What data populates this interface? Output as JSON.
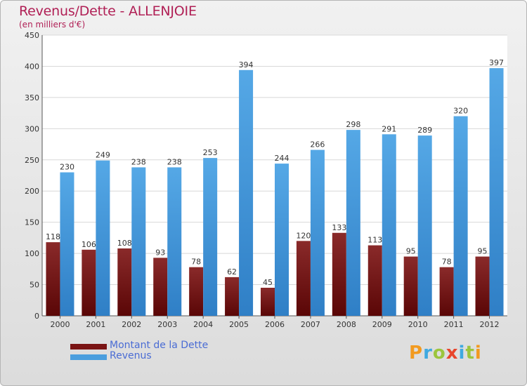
{
  "colors": {
    "dette": "#7a1414",
    "revenus": "#4a9ede",
    "title": "#b01f55",
    "legend_text": "#4a6cd4"
  },
  "chart_data": {
    "type": "bar",
    "title": "Revenus/Dette - ALLENJOIE",
    "subtitle": "(en milliers d'€)",
    "xlabel": "",
    "ylabel": "",
    "ylim": [
      0,
      450
    ],
    "yticks": [
      0,
      50,
      100,
      150,
      200,
      250,
      300,
      350,
      400,
      450
    ],
    "grid": true,
    "legend_position": "bottom-left",
    "categories": [
      "2000",
      "2001",
      "2002",
      "2003",
      "2004",
      "2005",
      "2006",
      "2007",
      "2008",
      "2009",
      "2010",
      "2011",
      "2012"
    ],
    "series": [
      {
        "name": "Montant de la Dette",
        "values": [
          118,
          106,
          108,
          93,
          78,
          62,
          45,
          120,
          133,
          113,
          95,
          78,
          95
        ]
      },
      {
        "name": "Revenus",
        "values": [
          230,
          249,
          238,
          238,
          253,
          394,
          244,
          266,
          298,
          291,
          289,
          320,
          397
        ]
      }
    ]
  },
  "logo": {
    "letters": [
      "P",
      "r",
      "o",
      "x",
      "i",
      "t",
      "i"
    ],
    "colors": [
      "#f29a1f",
      "#3fa9e0",
      "#9cc53d",
      "#e8452c",
      "#3fa9e0",
      "#9cc53d",
      "#f29a1f"
    ]
  }
}
